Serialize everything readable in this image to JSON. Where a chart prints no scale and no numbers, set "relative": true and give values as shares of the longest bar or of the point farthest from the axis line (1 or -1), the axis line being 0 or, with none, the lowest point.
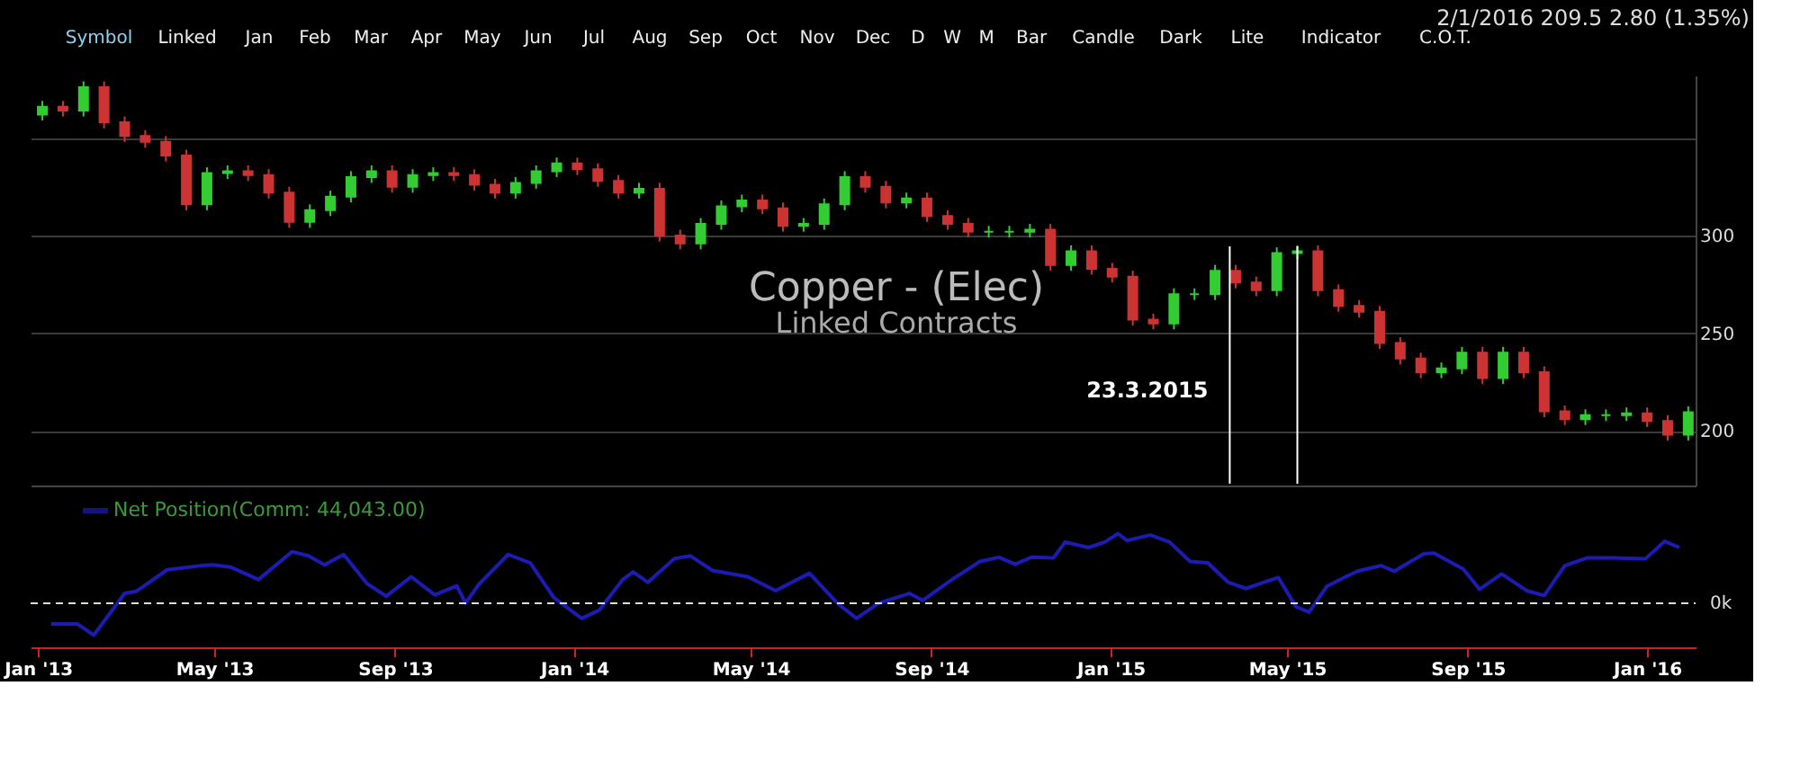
{
  "chart_data": [
    {
      "type": "candlestick",
      "title": "Copper - (Elec)",
      "subtitle": "Linked Contracts",
      "x": [
        "2013-01-04",
        "2013-01-18",
        "2013-02-01",
        "2013-02-15",
        "2013-03-01",
        "2013-03-15",
        "2013-03-29",
        "2013-04-12",
        "2013-04-26",
        "2013-05-10",
        "2013-05-24",
        "2013-06-07",
        "2013-06-21",
        "2013-07-05",
        "2013-07-19",
        "2013-08-02",
        "2013-08-16",
        "2013-08-30",
        "2013-09-13",
        "2013-09-27",
        "2013-10-11",
        "2013-10-25",
        "2013-11-08",
        "2013-11-22",
        "2013-12-06",
        "2013-12-20",
        "2014-01-03",
        "2014-01-17",
        "2014-01-31",
        "2014-02-14",
        "2014-02-28",
        "2014-03-14",
        "2014-03-28",
        "2014-04-11",
        "2014-04-25",
        "2014-05-09",
        "2014-05-23",
        "2014-06-06",
        "2014-06-20",
        "2014-07-04",
        "2014-07-18",
        "2014-08-01",
        "2014-08-15",
        "2014-08-29",
        "2014-09-12",
        "2014-09-26",
        "2014-10-10",
        "2014-10-24",
        "2014-11-07",
        "2014-11-21",
        "2014-12-05",
        "2014-12-19",
        "2015-01-02",
        "2015-01-16",
        "2015-01-30",
        "2015-02-13",
        "2015-02-27",
        "2015-03-13",
        "2015-03-27",
        "2015-04-10",
        "2015-04-24",
        "2015-05-08",
        "2015-05-22",
        "2015-06-05",
        "2015-06-19",
        "2015-07-03",
        "2015-07-17",
        "2015-07-31",
        "2015-08-14",
        "2015-08-28",
        "2015-09-11",
        "2015-09-25",
        "2015-10-09",
        "2015-10-23",
        "2015-11-06",
        "2015-11-20",
        "2015-12-04",
        "2015-12-18",
        "2016-01-01",
        "2016-01-15",
        "2016-01-29"
      ],
      "ohlc": [
        [
          362,
          369,
          359,
          366
        ],
        [
          366,
          369,
          361,
          364
        ],
        [
          364,
          379,
          361,
          376
        ],
        [
          376,
          379,
          355,
          358
        ],
        [
          358,
          361,
          348,
          351
        ],
        [
          351,
          354,
          345,
          348
        ],
        [
          348,
          351,
          338,
          341
        ],
        [
          341,
          344,
          313,
          316
        ],
        [
          316,
          335,
          313,
          332
        ],
        [
          332,
          336,
          329,
          333
        ],
        [
          333,
          336,
          328,
          331
        ],
        [
          331,
          334,
          319,
          322
        ],
        [
          322,
          325,
          304,
          307
        ],
        [
          307,
          316,
          304,
          313
        ],
        [
          313,
          323,
          310,
          320
        ],
        [
          320,
          333,
          317,
          330
        ],
        [
          330,
          336,
          327,
          333
        ],
        [
          333,
          336,
          322,
          325
        ],
        [
          325,
          334,
          322,
          331
        ],
        [
          331,
          335,
          328,
          332
        ],
        [
          332,
          335,
          328,
          331
        ],
        [
          331,
          334,
          323,
          326
        ],
        [
          326,
          329,
          319,
          322
        ],
        [
          322,
          330,
          319,
          327
        ],
        [
          327,
          336,
          324,
          333
        ],
        [
          333,
          340,
          330,
          337
        ],
        [
          337,
          340,
          331,
          334
        ],
        [
          334,
          337,
          325,
          328
        ],
        [
          328,
          331,
          319,
          322
        ],
        [
          322,
          327,
          319,
          324
        ],
        [
          324,
          327,
          297,
          300
        ],
        [
          300,
          303,
          293,
          296
        ],
        [
          296,
          309,
          293,
          306
        ],
        [
          306,
          318,
          303,
          315
        ],
        [
          315,
          321,
          312,
          318
        ],
        [
          318,
          321,
          311,
          314
        ],
        [
          314,
          317,
          302,
          305
        ],
        [
          305,
          309,
          302,
          306
        ],
        [
          306,
          319,
          303,
          316
        ],
        [
          316,
          333,
          313,
          330
        ],
        [
          330,
          333,
          322,
          325
        ],
        [
          325,
          328,
          314,
          317
        ],
        [
          317,
          322,
          314,
          319
        ],
        [
          319,
          322,
          307,
          310
        ],
        [
          310,
          313,
          303,
          306
        ],
        [
          306,
          309,
          299,
          302
        ],
        [
          302,
          305,
          299,
          302
        ],
        [
          302,
          305,
          299,
          302
        ],
        [
          302,
          306,
          299,
          303
        ],
        [
          303,
          306,
          282,
          285
        ],
        [
          285,
          295,
          282,
          292
        ],
        [
          292,
          295,
          280,
          283
        ],
        [
          283,
          286,
          276,
          279
        ],
        [
          279,
          282,
          254,
          257
        ],
        [
          257,
          260,
          252,
          255
        ],
        [
          255,
          273,
          252,
          270
        ],
        [
          270,
          273,
          267,
          270
        ],
        [
          270,
          285,
          267,
          282
        ],
        [
          282,
          285,
          273,
          276
        ],
        [
          276,
          279,
          269,
          272
        ],
        [
          272,
          294,
          269,
          291
        ],
        [
          291,
          295,
          288,
          292
        ],
        [
          292,
          295,
          269,
          272
        ],
        [
          272,
          275,
          261,
          264
        ],
        [
          264,
          267,
          258,
          261
        ],
        [
          261,
          264,
          242,
          245
        ],
        [
          245,
          248,
          234,
          237
        ],
        [
          237,
          240,
          227,
          230
        ],
        [
          230,
          235,
          227,
          232
        ],
        [
          232,
          243,
          229,
          240
        ],
        [
          240,
          243,
          224,
          227
        ],
        [
          227,
          243,
          224,
          240
        ],
        [
          240,
          243,
          227,
          230
        ],
        [
          230,
          233,
          207,
          210
        ],
        [
          210,
          213,
          203,
          206
        ],
        [
          206,
          211,
          203,
          208
        ],
        [
          208,
          211,
          205,
          208
        ],
        [
          208,
          212,
          205,
          209
        ],
        [
          209,
          212,
          202,
          205
        ],
        [
          205,
          208,
          195,
          198
        ],
        [
          198,
          212.5,
          195,
          209.5
        ]
      ],
      "colors": [
        "#33cc33",
        "#cc3333",
        "#33cc33",
        "#cc3333",
        "#cc3333",
        "#cc3333",
        "#cc3333",
        "#cc3333",
        "#33cc33",
        "#33cc33",
        "#cc3333",
        "#cc3333",
        "#cc3333",
        "#33cc33",
        "#33cc33",
        "#33cc33",
        "#33cc33",
        "#cc3333",
        "#33cc33",
        "#33cc33",
        "#cc3333",
        "#cc3333",
        "#cc3333",
        "#33cc33",
        "#33cc33",
        "#33cc33",
        "#cc3333",
        "#cc3333",
        "#cc3333",
        "#33cc33",
        "#cc3333",
        "#cc3333",
        "#33cc33",
        "#33cc33",
        "#33cc33",
        "#cc3333",
        "#cc3333",
        "#33cc33",
        "#33cc33",
        "#33cc33",
        "#cc3333",
        "#cc3333",
        "#33cc33",
        "#cc3333",
        "#cc3333",
        "#cc3333",
        "#33cc33",
        "#33cc33",
        "#33cc33",
        "#cc3333",
        "#33cc33",
        "#cc3333",
        "#cc3333",
        "#cc3333",
        "#cc3333",
        "#33cc33",
        "#33cc33",
        "#33cc33",
        "#cc3333",
        "#cc3333",
        "#33cc33",
        "#33cc33",
        "#cc3333",
        "#cc3333",
        "#cc3333",
        "#cc3333",
        "#cc3333",
        "#cc3333",
        "#33cc33",
        "#33cc33",
        "#cc3333",
        "#33cc33",
        "#cc3333",
        "#cc3333",
        "#cc3333",
        "#33cc33",
        "#33cc33",
        "#33cc33",
        "#cc3333",
        "#cc3333",
        "#33cc33"
      ],
      "xlim": [
        "2012-12-27",
        "2016-02-03"
      ],
      "ylim": [
        172,
        382
      ],
      "yticks": [
        200,
        250,
        300,
        {
          "value": 350,
          "label": null
        }
      ],
      "grid": "y",
      "tick_labels": "y",
      "ref_lines": [
        {
          "axis": "x",
          "value": "2015-03-23",
          "label": "23.3.2015",
          "color": "#ffffff"
        },
        {
          "axis": "x",
          "value": "2015-05-08",
          "label": null,
          "color": "#ffffff"
        }
      ],
      "annotations": [
        "Symbol",
        "Linked",
        "Jan",
        "Feb",
        "Mar",
        "Apr",
        "May",
        "Jun",
        "Jul",
        "Aug",
        "Sep",
        "Oct",
        "Nov",
        "Dec",
        "D",
        "W",
        "M",
        "Bar",
        "Candle",
        "Dark",
        "Lite",
        "Indicator",
        "C.O.T.",
        "2/1/2016 209.5 2.80 (1.35%)"
      ]
    },
    {
      "type": "line",
      "relative": true,
      "legend": "top left",
      "tick_labels": "x",
      "series": [
        {
          "name": "Net Position(Comm: 44,043.00)",
          "color": "#1c1cb4",
          "x": [
            "2013-01-10",
            "2013-01-28",
            "2013-02-08",
            "2013-03-01",
            "2013-03-09",
            "2013-03-30",
            "2013-04-22",
            "2013-04-30",
            "2013-05-12",
            "2013-05-31",
            "2013-06-23",
            "2013-07-04",
            "2013-07-15",
            "2013-07-28",
            "2013-08-13",
            "2013-08-26",
            "2013-09-12",
            "2013-09-28",
            "2013-10-13",
            "2013-10-19",
            "2013-10-28",
            "2013-11-17",
            "2013-12-02",
            "2013-12-18",
            "2014-01-06",
            "2014-01-18",
            "2014-02-03",
            "2014-02-10",
            "2014-02-20",
            "2014-03-10",
            "2014-03-21",
            "2014-04-05",
            "2014-04-29",
            "2014-05-18",
            "2014-06-10",
            "2014-06-29",
            "2014-07-12",
            "2014-07-27",
            "2014-08-17",
            "2014-08-26",
            "2014-09-15",
            "2014-10-04",
            "2014-10-17",
            "2014-10-28",
            "2014-11-08",
            "2014-11-23",
            "2014-12-01",
            "2014-12-17",
            "2014-12-28",
            "2015-01-06",
            "2015-01-12",
            "2015-01-28",
            "2015-02-10",
            "2015-02-24",
            "2015-03-08",
            "2015-03-22",
            "2015-04-03",
            "2015-04-14",
            "2015-04-25",
            "2015-05-07",
            "2015-05-16",
            "2015-05-28",
            "2015-06-09",
            "2015-06-18",
            "2015-07-04",
            "2015-07-13",
            "2015-08-02",
            "2015-08-09",
            "2015-08-29",
            "2015-09-09",
            "2015-09-24",
            "2015-10-11",
            "2015-10-23",
            "2015-11-06",
            "2015-11-21",
            "2015-12-08",
            "2015-12-31",
            "2016-01-13",
            "2016-01-23"
          ],
          "values": [
            -0.3,
            -0.3,
            -0.46,
            0.14,
            0.17,
            0.48,
            0.54,
            0.55,
            0.52,
            0.34,
            0.74,
            0.68,
            0.55,
            0.7,
            0.28,
            0.1,
            0.38,
            0.12,
            0.25,
            0,
            0.27,
            0.7,
            0.58,
            0.08,
            -0.22,
            -0.1,
            0.34,
            0.45,
            0.3,
            0.64,
            0.68,
            0.47,
            0.38,
            0.18,
            0.43,
            0,
            -0.22,
            0,
            0.14,
            0.04,
            0.34,
            0.6,
            0.66,
            0.56,
            0.66,
            0.65,
            0.88,
            0.8,
            0.88,
            1.0,
            0.9,
            0.98,
            0.88,
            0.6,
            0.58,
            0.3,
            0.21,
            0.29,
            0.37,
            -0.05,
            -0.13,
            0.24,
            0.37,
            0.46,
            0.54,
            0.46,
            0.71,
            0.72,
            0.49,
            0.2,
            0.42,
            0.18,
            0.11,
            0.54,
            0.65,
            0.65,
            0.64,
            0.89,
            0.8
          ]
        }
      ],
      "xlim": [
        "2012-12-27",
        "2016-02-03"
      ],
      "xticks": [
        {
          "value": "2013-01-01",
          "label": "Jan '13"
        },
        {
          "value": "2013-05-01",
          "label": "May '13"
        },
        {
          "value": "2013-09-01",
          "label": "Sep '13"
        },
        {
          "value": "2014-01-01",
          "label": "Jan '14"
        },
        {
          "value": "2014-05-01",
          "label": "May '14"
        },
        {
          "value": "2014-09-01",
          "label": "Sep '14"
        },
        {
          "value": "2015-01-01",
          "label": "Jan '15"
        },
        {
          "value": "2015-05-01",
          "label": "May '15"
        },
        {
          "value": "2015-09-01",
          "label": "Sep '15"
        },
        {
          "value": "2016-01-01",
          "label": "Jan '16"
        }
      ],
      "ref_lines": [
        {
          "axis": "y",
          "value": 0,
          "label": "0k",
          "line_style": "dashed",
          "color": "#dddddd"
        }
      ]
    }
  ]
}
